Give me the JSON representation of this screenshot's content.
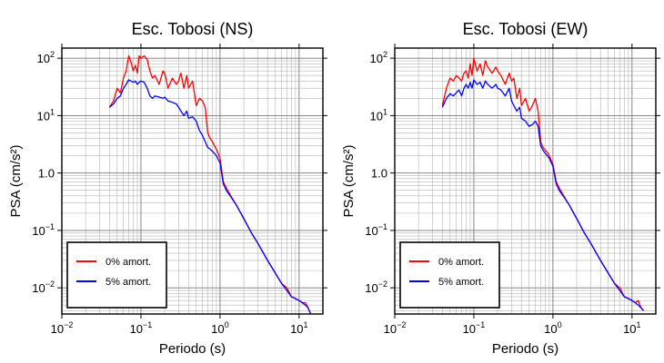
{
  "chart_data": [
    {
      "type": "line",
      "title": "Esc. Tobosi (NS)",
      "xlabel": "Periodo (s)",
      "ylabel": "PSA (cm/s²)",
      "xscale": "log",
      "yscale": "log",
      "xlim": [
        0.01,
        20
      ],
      "ylim": [
        0.0035,
        150
      ],
      "xticks": [
        {
          "value": 0.01,
          "base": "10",
          "exp": "−2"
        },
        {
          "value": 0.1,
          "base": "10",
          "exp": "−1"
        },
        {
          "value": 1,
          "base": "10",
          "exp": "0"
        },
        {
          "value": 10,
          "base": "10",
          "exp": "1"
        }
      ],
      "yticks": [
        {
          "value": 0.01,
          "base": "10",
          "exp": "−2"
        },
        {
          "value": 0.1,
          "base": "10",
          "exp": "−1"
        },
        {
          "value": 1,
          "base": "1.0",
          "exp": ""
        },
        {
          "value": 10,
          "base": "10",
          "exp": "1"
        },
        {
          "value": 100,
          "base": "10",
          "exp": "2"
        }
      ],
      "grid": true,
      "legend_position": "bottom-left",
      "series": [
        {
          "name": "0% amort.",
          "color": "#ff0000",
          "x": [
            0.04,
            0.045,
            0.05,
            0.055,
            0.06,
            0.065,
            0.07,
            0.075,
            0.08,
            0.085,
            0.09,
            0.095,
            0.1,
            0.11,
            0.12,
            0.13,
            0.14,
            0.15,
            0.17,
            0.19,
            0.2,
            0.22,
            0.25,
            0.28,
            0.3,
            0.32,
            0.35,
            0.38,
            0.4,
            0.45,
            0.5,
            0.55,
            0.6,
            0.65,
            0.7,
            0.75,
            0.8,
            0.85,
            0.9,
            1.0,
            1.1,
            1.2,
            1.4,
            1.6,
            2.0,
            2.5,
            3.0,
            4.0,
            5.0,
            6.0,
            7.0,
            8.0,
            9.0,
            10.0,
            11.0,
            12.0,
            13.0,
            14.0
          ],
          "y": [
            14,
            18,
            30,
            25,
            45,
            60,
            110,
            85,
            60,
            75,
            55,
            110,
            100,
            110,
            95,
            60,
            45,
            50,
            35,
            60,
            55,
            30,
            45,
            35,
            40,
            55,
            30,
            50,
            30,
            40,
            15,
            20,
            18,
            14,
            5,
            4,
            3.5,
            3.0,
            2.6,
            1.8,
            0.7,
            0.55,
            0.38,
            0.28,
            0.16,
            0.09,
            0.06,
            0.03,
            0.018,
            0.012,
            0.01,
            0.007,
            0.0065,
            0.006,
            0.0055,
            0.0055,
            0.0045,
            0.0035
          ]
        },
        {
          "name": "5% amort.",
          "color": "#0000ff",
          "x": [
            0.04,
            0.045,
            0.05,
            0.055,
            0.06,
            0.065,
            0.07,
            0.075,
            0.08,
            0.085,
            0.09,
            0.095,
            0.1,
            0.11,
            0.12,
            0.13,
            0.14,
            0.15,
            0.17,
            0.19,
            0.2,
            0.22,
            0.25,
            0.28,
            0.3,
            0.32,
            0.35,
            0.38,
            0.4,
            0.45,
            0.5,
            0.55,
            0.6,
            0.65,
            0.7,
            0.75,
            0.8,
            0.85,
            0.9,
            1.0,
            1.1,
            1.2,
            1.4,
            1.6,
            2.0,
            2.5,
            3.0,
            4.0,
            5.0,
            6.0,
            7.0,
            8.0,
            9.0,
            10.0,
            11.0,
            12.0,
            13.0,
            14.0
          ],
          "y": [
            14,
            16,
            20,
            22,
            30,
            35,
            42,
            40,
            38,
            40,
            35,
            38,
            40,
            38,
            30,
            22,
            20,
            22,
            21,
            20,
            21,
            18,
            17,
            16,
            14,
            12,
            10,
            12,
            9,
            9.5,
            8,
            5.5,
            4.5,
            3.5,
            2.8,
            2.6,
            2.4,
            2.2,
            2.0,
            1.5,
            0.65,
            0.5,
            0.37,
            0.28,
            0.16,
            0.09,
            0.06,
            0.03,
            0.018,
            0.012,
            0.009,
            0.007,
            0.0065,
            0.006,
            0.0055,
            0.005,
            0.0045,
            0.0035
          ]
        }
      ]
    },
    {
      "type": "line",
      "title": "Esc. Tobosi (EW)",
      "xlabel": "Periodo (s)",
      "ylabel": "PSA (cm/s²)",
      "xscale": "log",
      "yscale": "log",
      "xlim": [
        0.01,
        20
      ],
      "ylim": [
        0.0035,
        150
      ],
      "xticks": [
        {
          "value": 0.01,
          "base": "10",
          "exp": "−2"
        },
        {
          "value": 0.1,
          "base": "10",
          "exp": "−1"
        },
        {
          "value": 1,
          "base": "10",
          "exp": "0"
        },
        {
          "value": 10,
          "base": "10",
          "exp": "1"
        }
      ],
      "yticks": [
        {
          "value": 0.01,
          "base": "10",
          "exp": "−2"
        },
        {
          "value": 0.1,
          "base": "10",
          "exp": "−1"
        },
        {
          "value": 1,
          "base": "1.0",
          "exp": ""
        },
        {
          "value": 10,
          "base": "10",
          "exp": "1"
        },
        {
          "value": 100,
          "base": "10",
          "exp": "2"
        }
      ],
      "grid": true,
      "legend_position": "bottom-left",
      "series": [
        {
          "name": "0% amort.",
          "color": "#ff0000",
          "x": [
            0.04,
            0.045,
            0.05,
            0.055,
            0.06,
            0.065,
            0.07,
            0.075,
            0.08,
            0.085,
            0.09,
            0.095,
            0.1,
            0.11,
            0.12,
            0.13,
            0.14,
            0.15,
            0.17,
            0.19,
            0.2,
            0.22,
            0.25,
            0.28,
            0.3,
            0.32,
            0.35,
            0.38,
            0.4,
            0.45,
            0.5,
            0.55,
            0.6,
            0.65,
            0.7,
            0.75,
            0.8,
            0.85,
            0.9,
            1.0,
            1.1,
            1.2,
            1.4,
            1.6,
            2.0,
            2.5,
            3.0,
            4.0,
            5.0,
            6.0,
            7.0,
            8.0,
            9.0,
            10.0,
            11.0,
            12.0,
            13.0,
            14.0
          ],
          "y": [
            15,
            30,
            45,
            40,
            50,
            45,
            40,
            55,
            60,
            45,
            80,
            50,
            100,
            60,
            80,
            50,
            90,
            70,
            55,
            70,
            60,
            50,
            35,
            55,
            40,
            45,
            20,
            30,
            15,
            20,
            12,
            15,
            20,
            12,
            3.5,
            2.8,
            2.5,
            2.3,
            2.0,
            1.4,
            0.7,
            0.55,
            0.38,
            0.28,
            0.16,
            0.09,
            0.06,
            0.03,
            0.018,
            0.012,
            0.01,
            0.007,
            0.0065,
            0.006,
            0.0055,
            0.006,
            0.0045,
            0.004
          ]
        },
        {
          "name": "5% amort.",
          "color": "#0000ff",
          "x": [
            0.04,
            0.045,
            0.05,
            0.055,
            0.06,
            0.065,
            0.07,
            0.075,
            0.08,
            0.085,
            0.09,
            0.095,
            0.1,
            0.11,
            0.12,
            0.13,
            0.14,
            0.15,
            0.17,
            0.19,
            0.2,
            0.22,
            0.25,
            0.28,
            0.3,
            0.32,
            0.35,
            0.38,
            0.4,
            0.45,
            0.5,
            0.55,
            0.6,
            0.65,
            0.7,
            0.75,
            0.8,
            0.85,
            0.9,
            1.0,
            1.1,
            1.2,
            1.4,
            1.6,
            2.0,
            2.5,
            3.0,
            4.0,
            5.0,
            6.0,
            7.0,
            8.0,
            9.0,
            10.0,
            11.0,
            12.0,
            13.0,
            14.0
          ],
          "y": [
            14,
            20,
            24,
            22,
            25,
            28,
            22,
            30,
            35,
            30,
            38,
            30,
            42,
            35,
            38,
            30,
            40,
            35,
            30,
            35,
            30,
            28,
            22,
            30,
            18,
            15,
            12,
            14,
            9,
            8,
            6.5,
            7,
            8,
            6.5,
            3,
            2.5,
            2.2,
            2.0,
            1.8,
            1.3,
            0.65,
            0.5,
            0.37,
            0.28,
            0.16,
            0.09,
            0.06,
            0.03,
            0.018,
            0.012,
            0.009,
            0.007,
            0.0065,
            0.006,
            0.0055,
            0.005,
            0.0045,
            0.004
          ]
        }
      ]
    }
  ]
}
